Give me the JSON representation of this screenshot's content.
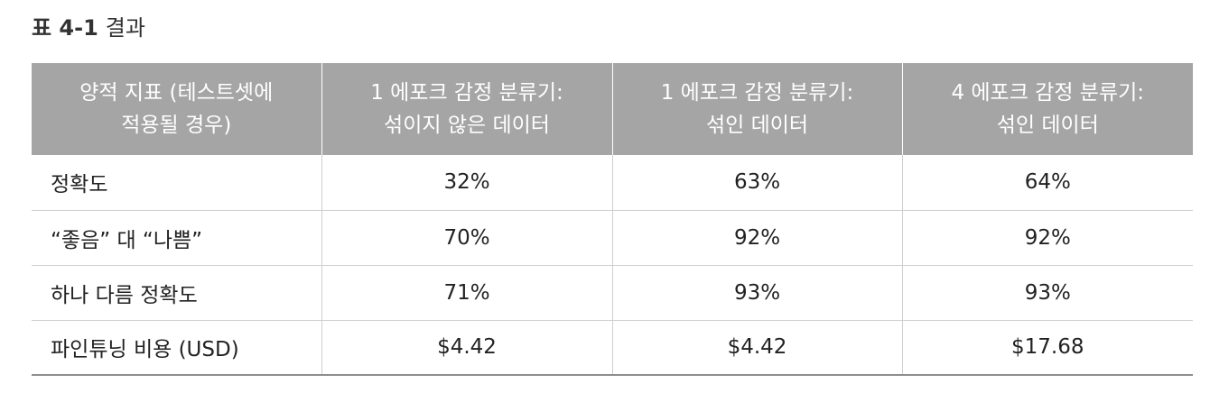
{
  "caption": {
    "number": "표 4-1",
    "title": "결과"
  },
  "table": {
    "headers": [
      [
        "양적 지표 (테스트셋에",
        "적용될 경우)"
      ],
      [
        "1 에포크 감정 분류기:",
        "섞이지 않은 데이터"
      ],
      [
        "1 에포크 감정 분류기:",
        "섞인 데이터"
      ],
      [
        "4 에포크 감정 분류기:",
        "섞인 데이터"
      ]
    ],
    "rows": [
      [
        "정확도",
        "32%",
        "63%",
        "64%"
      ],
      [
        "“좋음” 대 “나쁨”",
        "70%",
        "92%",
        "92%"
      ],
      [
        "하나 다름 정확도",
        "71%",
        "93%",
        "93%"
      ],
      [
        "파인튜닝 비용 (USD)",
        "$4.42",
        "$4.42",
        "$17.68"
      ]
    ]
  }
}
